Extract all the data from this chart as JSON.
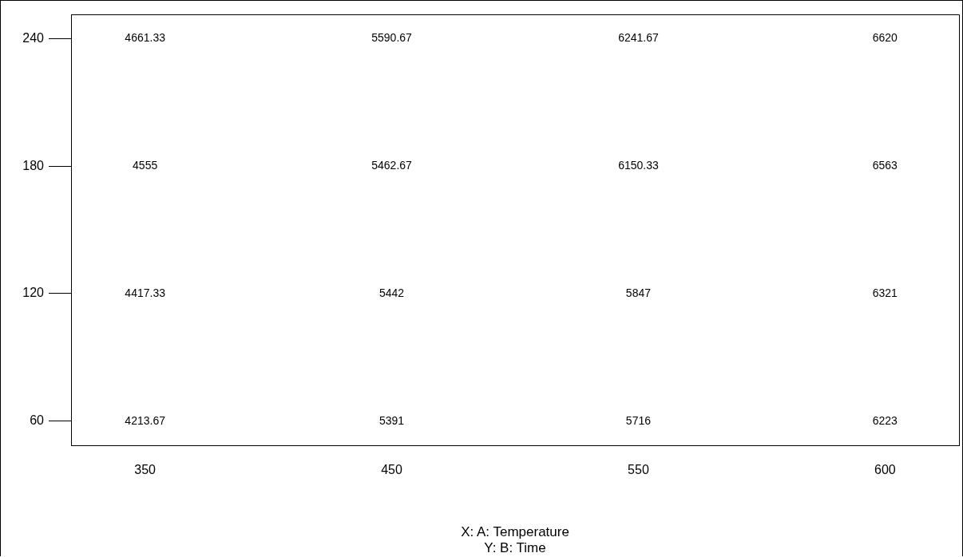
{
  "chart_data": {
    "type": "heatmap",
    "xlabel": "X: A: Temperature",
    "annotations": [
      "Y: B: Time"
    ],
    "categories": [
      "350",
      "450",
      "550",
      "600"
    ],
    "y_categories": [
      "240",
      "180",
      "120",
      "60"
    ],
    "cells": [
      [
        4661.33,
        5590.67,
        6241.67,
        6620
      ],
      [
        4555,
        5462.67,
        6150.33,
        6563
      ],
      [
        4417.33,
        5442,
        5847,
        6321
      ],
      [
        4213.67,
        5391,
        5716,
        6223
      ]
    ],
    "data_labels": true,
    "grid": false,
    "legend": false
  }
}
